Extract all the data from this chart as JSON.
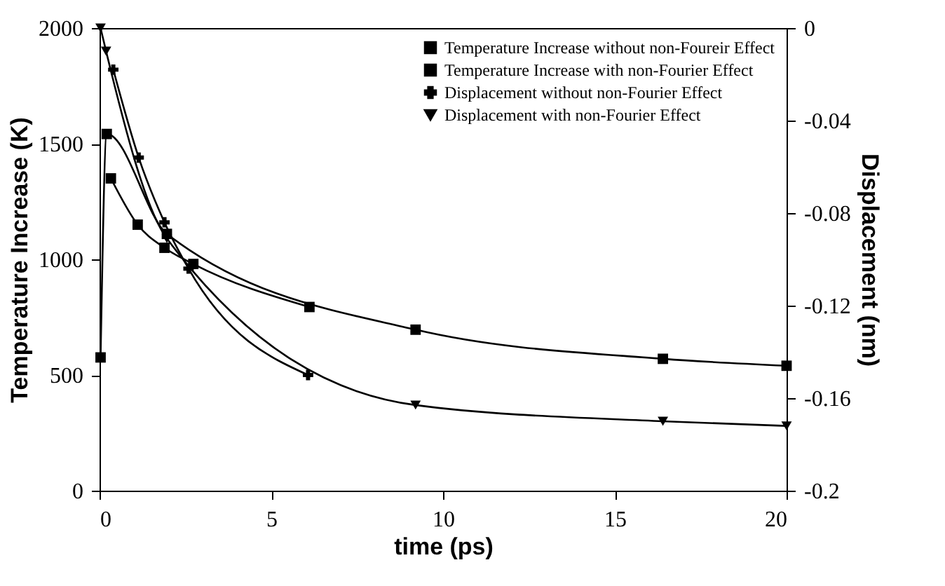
{
  "chart_data": {
    "type": "line",
    "xlabel": "time  (ps)",
    "ylabel": "Temperature  Increase  (K)",
    "y2label": "Displacement  (nm)",
    "xlim": [
      0,
      20
    ],
    "xticks": [
      0,
      5,
      10,
      15,
      20
    ],
    "ylim": [
      0,
      2000
    ],
    "yticks": [
      0,
      500,
      1000,
      1500,
      2000
    ],
    "y2lim": [
      -0.2,
      0
    ],
    "y2ticks": [
      -0.2,
      -0.16,
      -0.12,
      -0.08,
      -0.04,
      0
    ],
    "grid": false,
    "legend": "top right",
    "series": [
      {
        "name": "Temperature Increase without non-Foureir Effect",
        "color": "#000000",
        "marker": "square",
        "x": [
          0.33,
          1.11,
          1.89,
          2.73,
          6.11
        ],
        "values": [
          1350,
          1150,
          1050,
          980,
          794
        ]
      },
      {
        "name": "Temperature Increase with non-Fourier Effect",
        "color": "#000000",
        "marker": "square",
        "x": [
          0.03,
          0.21,
          1.96,
          9.2,
          16.4,
          20
        ],
        "values": [
          576,
          1542,
          1110,
          696,
          570,
          540
        ]
      },
      {
        "name": "Displacement without non-Fourier Effect",
        "color": "#000000",
        "marker": "cross",
        "axis": "y2",
        "x": [
          0.4,
          1.14,
          1.89,
          2.59,
          6.07
        ],
        "values": [
          -0.018,
          -0.056,
          -0.084,
          -0.104,
          -0.15
        ]
      },
      {
        "name": "Displacement with non-Fourier Effect",
        "color": "#000000",
        "marker": "triangle",
        "axis": "y2",
        "x": [
          0.03,
          0.19,
          1.96,
          9.2,
          16.4,
          20
        ],
        "values": [
          0,
          -0.01,
          -0.091,
          -0.163,
          -0.17,
          -0.172
        ]
      }
    ]
  }
}
